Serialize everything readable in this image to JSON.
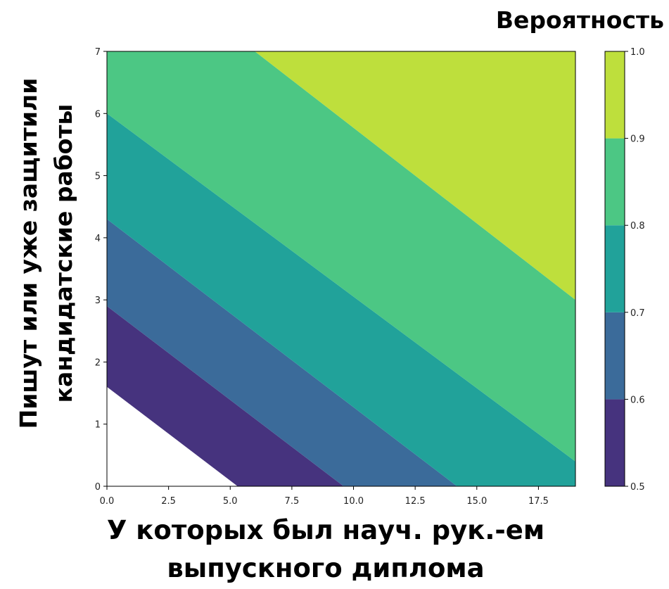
{
  "chart_data": {
    "type": "contour",
    "title": "",
    "colorbar_label": "Вероятность",
    "xlabel_lines": [
      "У которых был науч. рук.-ем",
      "выпускного диплома"
    ],
    "ylabel_lines": [
      "Пишут или уже защитили",
      "кандидатские работы"
    ],
    "xlim": [
      0,
      19
    ],
    "ylim": [
      0,
      7
    ],
    "x_ticks": [
      0.0,
      2.5,
      5.0,
      7.5,
      10.0,
      12.5,
      15.0,
      17.5
    ],
    "x_tick_labels": [
      "0.0",
      "2.5",
      "5.0",
      "7.5",
      "10.0",
      "12.5",
      "15.0",
      "17.5"
    ],
    "y_ticks": [
      0,
      1,
      2,
      3,
      4,
      5,
      6,
      7
    ],
    "y_tick_labels": [
      "0",
      "1",
      "2",
      "3",
      "4",
      "5",
      "6",
      "7"
    ],
    "levels": [
      0.5,
      0.6,
      0.7,
      0.8,
      0.9,
      1.0
    ],
    "level_labels": [
      "0.5",
      "0.6",
      "0.7",
      "0.8",
      "0.9",
      "1.0"
    ],
    "band_colors": [
      "#46337e",
      "#3b6b9a",
      "#21a29a",
      "#4cc784",
      "#bedf3c"
    ],
    "boundaries": [
      {
        "level": 0.5,
        "y_at_x0": 1.6,
        "x_at_y0": 5.3
      },
      {
        "level": 0.6,
        "y_at_x0": 2.9,
        "x_at_y0": 9.6
      },
      {
        "level": 0.7,
        "y_at_x0": 4.3,
        "x_at_y0": 14.2
      },
      {
        "level": 0.8,
        "y_at_x0": 6.0,
        "x_at_y0": 19.0,
        "y_at_x19": 0.4
      },
      {
        "level": 0.9,
        "x_at_y7": 6.0,
        "y_at_x19": 3.0
      }
    ]
  }
}
